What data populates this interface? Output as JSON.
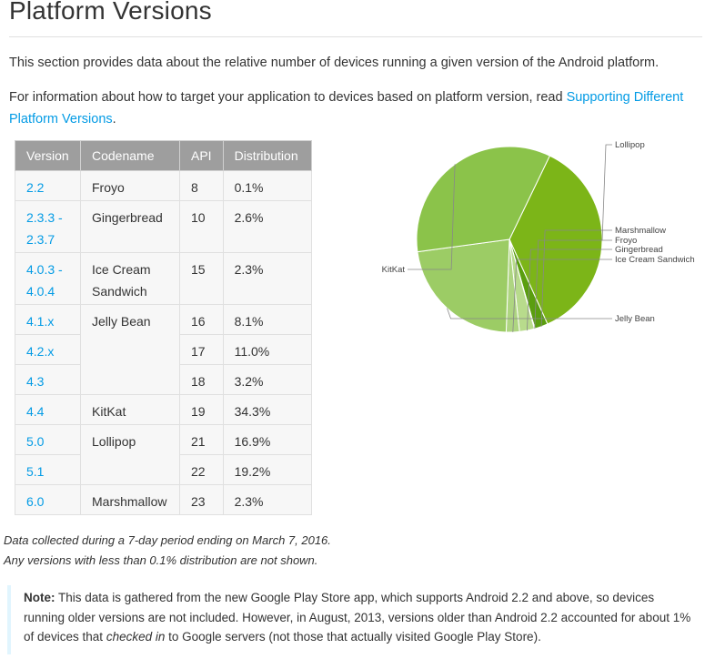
{
  "title": "Platform Versions",
  "intro": "This section provides data about the relative number of devices running a given version of the Android platform.",
  "info": {
    "prefix": "For information about how to target your application to devices based on platform version, read ",
    "link": "Supporting Different Platform Versions",
    "suffix": "."
  },
  "table": {
    "headers": [
      "Version",
      "Codename",
      "API",
      "Distribution"
    ],
    "rows": [
      {
        "version": "2.2",
        "codename": "Froyo",
        "api": "8",
        "dist": "0.1%"
      },
      {
        "version": "2.3.3 - 2.3.7",
        "codename": "Gingerbread",
        "api": "10",
        "dist": "2.6%"
      },
      {
        "version": "4.0.3 - 4.0.4",
        "codename": "Ice Cream Sandwich",
        "api": "15",
        "dist": "2.3%"
      },
      {
        "version": "4.1.x",
        "codename": "Jelly Bean",
        "api": "16",
        "dist": "8.1%"
      },
      {
        "version": "4.2.x",
        "codename": "",
        "api": "17",
        "dist": "11.0%"
      },
      {
        "version": "4.3",
        "codename": "",
        "api": "18",
        "dist": "3.2%"
      },
      {
        "version": "4.4",
        "codename": "KitKat",
        "api": "19",
        "dist": "34.3%"
      },
      {
        "version": "5.0",
        "codename": "Lollipop",
        "api": "21",
        "dist": "16.9%"
      },
      {
        "version": "5.1",
        "codename": "",
        "api": "22",
        "dist": "19.2%"
      },
      {
        "version": "6.0",
        "codename": "Marshmallow",
        "api": "23",
        "dist": "2.3%"
      }
    ]
  },
  "chart_data": {
    "type": "pie",
    "slices": [
      {
        "label": "Lollipop",
        "value": 36.1,
        "color": "#7cb518"
      },
      {
        "label": "Marshmallow",
        "value": 2.3,
        "color": "#5a9e0f"
      },
      {
        "label": "Froyo",
        "value": 0.1,
        "color": "#c5e1a5"
      },
      {
        "label": "Gingerbread",
        "value": 2.6,
        "color": "#b8db8c"
      },
      {
        "label": "Ice Cream Sandwich",
        "value": 2.3,
        "color": "#aed581"
      },
      {
        "label": "Jelly Bean",
        "value": 22.3,
        "color": "#9ccc65"
      },
      {
        "label": "KitKat",
        "value": 34.3,
        "color": "#8bc34a"
      }
    ]
  },
  "footnote": {
    "line1": "Data collected during a 7-day period ending on March 7, 2016.",
    "line2": "Any versions with less than 0.1% distribution are not shown."
  },
  "note": {
    "label": "Note:",
    "part1": " This data is gathered from the new Google Play Store app, which supports Android 2.2 and above, so devices running older versions are not included. However, in August, 2013, versions older than Android 2.2 accounted for about 1% of devices that ",
    "emph": "checked in",
    "part2": " to Google servers (not those that actually visited Google Play Store)."
  }
}
